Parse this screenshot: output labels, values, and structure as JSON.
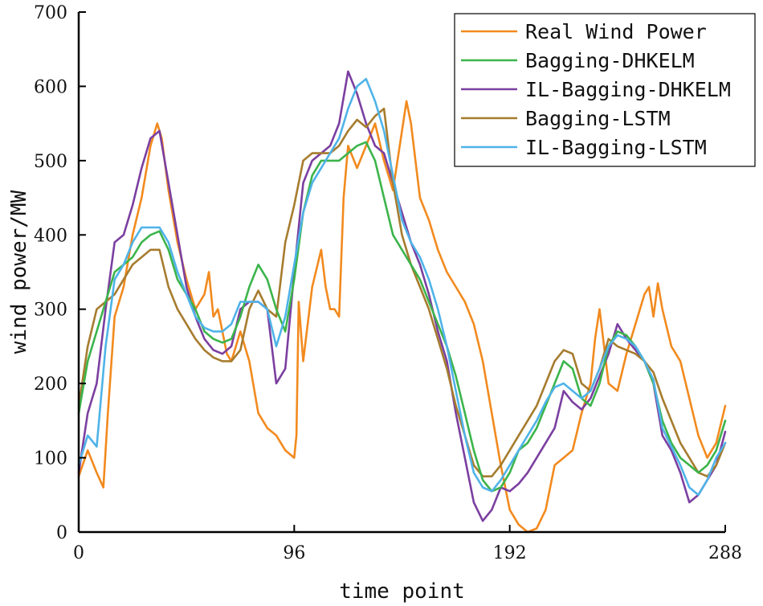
{
  "chart_data": {
    "type": "line",
    "title": "",
    "xlabel": "time point",
    "ylabel": "wind power/MW",
    "xlim": [
      0,
      288
    ],
    "ylim": [
      0,
      700
    ],
    "xticks": [
      0,
      96,
      192,
      288
    ],
    "yticks": [
      0,
      100,
      200,
      300,
      400,
      500,
      600,
      700
    ],
    "grid": false,
    "legend_position": "top-right",
    "series": [
      {
        "name": "Real Wind Power",
        "color": "#F28A1E",
        "x": [
          0,
          4,
          8,
          11,
          13,
          16,
          20,
          24,
          28,
          32,
          35,
          37,
          40,
          44,
          48,
          52,
          56,
          58,
          60,
          62,
          64,
          66,
          68,
          72,
          76,
          80,
          84,
          88,
          92,
          96,
          97,
          98,
          100,
          104,
          108,
          110,
          112,
          114,
          116,
          118,
          120,
          124,
          128,
          132,
          136,
          140,
          144,
          146,
          148,
          152,
          156,
          160,
          164,
          168,
          172,
          176,
          180,
          184,
          188,
          192,
          196,
          200,
          204,
          208,
          212,
          216,
          220,
          224,
          228,
          230,
          232,
          236,
          240,
          244,
          248,
          252,
          254,
          256,
          258,
          260,
          264,
          268,
          272,
          276,
          280,
          284,
          288
        ],
        "values": [
          75,
          110,
          80,
          60,
          160,
          290,
          330,
          400,
          450,
          520,
          550,
          530,
          460,
          390,
          340,
          300,
          320,
          350,
          290,
          300,
          270,
          240,
          230,
          270,
          230,
          160,
          140,
          130,
          110,
          100,
          130,
          310,
          230,
          330,
          380,
          330,
          300,
          300,
          290,
          450,
          520,
          490,
          520,
          550,
          500,
          460,
          540,
          580,
          550,
          450,
          420,
          380,
          350,
          330,
          310,
          280,
          230,
          160,
          90,
          30,
          10,
          0,
          5,
          30,
          90,
          100,
          110,
          160,
          200,
          260,
          300,
          200,
          190,
          240,
          280,
          320,
          330,
          290,
          335,
          300,
          250,
          230,
          180,
          130,
          100,
          120,
          170
        ]
      },
      {
        "name": "Bagging-DHKELM",
        "color": "#3CB44B",
        "x": [
          0,
          4,
          8,
          12,
          16,
          20,
          24,
          28,
          32,
          36,
          40,
          44,
          48,
          52,
          56,
          60,
          64,
          68,
          72,
          76,
          80,
          84,
          88,
          92,
          96,
          100,
          104,
          108,
          112,
          116,
          120,
          124,
          128,
          132,
          136,
          140,
          144,
          148,
          152,
          156,
          160,
          164,
          168,
          172,
          176,
          180,
          184,
          188,
          192,
          196,
          200,
          204,
          208,
          212,
          216,
          220,
          224,
          228,
          232,
          236,
          240,
          244,
          248,
          252,
          256,
          260,
          264,
          268,
          272,
          276,
          280,
          284,
          288
        ],
        "values": [
          160,
          230,
          270,
          310,
          350,
          360,
          370,
          390,
          400,
          405,
          380,
          340,
          320,
          300,
          270,
          260,
          255,
          260,
          290,
          330,
          360,
          340,
          300,
          270,
          340,
          430,
          480,
          500,
          500,
          500,
          510,
          520,
          525,
          500,
          450,
          400,
          380,
          360,
          340,
          310,
          280,
          250,
          210,
          160,
          110,
          70,
          55,
          60,
          80,
          110,
          120,
          140,
          170,
          200,
          230,
          220,
          180,
          170,
          200,
          250,
          270,
          265,
          250,
          230,
          200,
          150,
          120,
          100,
          90,
          80,
          90,
          110,
          150
        ]
      },
      {
        "name": "IL-Bagging-DHKELM",
        "color": "#7B3FA0",
        "x": [
          0,
          4,
          8,
          12,
          16,
          20,
          24,
          28,
          32,
          36,
          40,
          44,
          48,
          52,
          56,
          60,
          64,
          68,
          72,
          76,
          80,
          84,
          88,
          92,
          96,
          100,
          104,
          108,
          112,
          116,
          120,
          124,
          128,
          132,
          136,
          140,
          144,
          148,
          152,
          156,
          160,
          164,
          168,
          172,
          176,
          180,
          184,
          188,
          192,
          196,
          200,
          204,
          208,
          212,
          216,
          220,
          224,
          228,
          232,
          236,
          240,
          244,
          248,
          252,
          256,
          260,
          264,
          268,
          272,
          276,
          280,
          284,
          288
        ],
        "values": [
          80,
          160,
          200,
          300,
          390,
          400,
          440,
          490,
          530,
          540,
          470,
          400,
          330,
          290,
          260,
          245,
          240,
          250,
          300,
          310,
          310,
          300,
          200,
          220,
          350,
          470,
          500,
          510,
          520,
          550,
          620,
          590,
          550,
          520,
          510,
          470,
          430,
          390,
          360,
          320,
          270,
          230,
          160,
          100,
          40,
          15,
          30,
          60,
          55,
          65,
          80,
          100,
          120,
          140,
          190,
          175,
          165,
          180,
          210,
          240,
          280,
          260,
          245,
          230,
          200,
          130,
          110,
          80,
          40,
          50,
          70,
          90,
          135
        ]
      },
      {
        "name": "Bagging-LSTM",
        "color": "#A67C2E",
        "x": [
          0,
          4,
          8,
          12,
          16,
          20,
          24,
          28,
          32,
          36,
          40,
          44,
          48,
          52,
          56,
          60,
          64,
          68,
          72,
          76,
          80,
          84,
          88,
          92,
          96,
          100,
          104,
          108,
          112,
          116,
          120,
          124,
          128,
          132,
          136,
          140,
          144,
          148,
          152,
          156,
          160,
          164,
          168,
          172,
          176,
          180,
          184,
          188,
          192,
          196,
          200,
          204,
          208,
          212,
          216,
          220,
          224,
          228,
          232,
          236,
          240,
          244,
          248,
          252,
          256,
          260,
          264,
          268,
          272,
          276,
          280,
          284,
          288
        ],
        "values": [
          170,
          250,
          300,
          310,
          320,
          340,
          360,
          370,
          380,
          380,
          330,
          300,
          280,
          260,
          245,
          235,
          230,
          230,
          245,
          300,
          325,
          300,
          290,
          390,
          440,
          500,
          510,
          510,
          510,
          520,
          540,
          555,
          545,
          560,
          570,
          470,
          400,
          360,
          330,
          300,
          260,
          220,
          170,
          130,
          90,
          75,
          75,
          90,
          110,
          130,
          150,
          170,
          200,
          230,
          245,
          240,
          200,
          190,
          220,
          260,
          250,
          245,
          240,
          230,
          215,
          180,
          150,
          120,
          100,
          80,
          75,
          90,
          120
        ]
      },
      {
        "name": "IL-Bagging-LSTM",
        "color": "#4FB3E8",
        "x": [
          0,
          4,
          8,
          12,
          16,
          20,
          24,
          28,
          32,
          36,
          40,
          44,
          48,
          52,
          56,
          60,
          64,
          68,
          72,
          76,
          80,
          84,
          88,
          92,
          96,
          100,
          104,
          108,
          112,
          116,
          120,
          124,
          128,
          132,
          136,
          140,
          144,
          148,
          152,
          156,
          160,
          164,
          168,
          172,
          176,
          180,
          184,
          188,
          192,
          196,
          200,
          204,
          208,
          212,
          216,
          220,
          224,
          228,
          232,
          236,
          240,
          244,
          248,
          252,
          256,
          260,
          264,
          268,
          272,
          276,
          280,
          284,
          288
        ],
        "values": [
          90,
          130,
          115,
          250,
          340,
          360,
          390,
          410,
          410,
          410,
          390,
          350,
          320,
          290,
          275,
          270,
          270,
          280,
          310,
          310,
          310,
          300,
          250,
          290,
          360,
          430,
          470,
          490,
          510,
          530,
          570,
          600,
          610,
          580,
          540,
          480,
          420,
          390,
          370,
          340,
          300,
          250,
          190,
          130,
          80,
          60,
          55,
          70,
          90,
          110,
          130,
          150,
          175,
          195,
          200,
          190,
          180,
          190,
          220,
          250,
          265,
          260,
          250,
          230,
          205,
          140,
          115,
          90,
          60,
          50,
          70,
          100,
          120
        ]
      }
    ]
  }
}
